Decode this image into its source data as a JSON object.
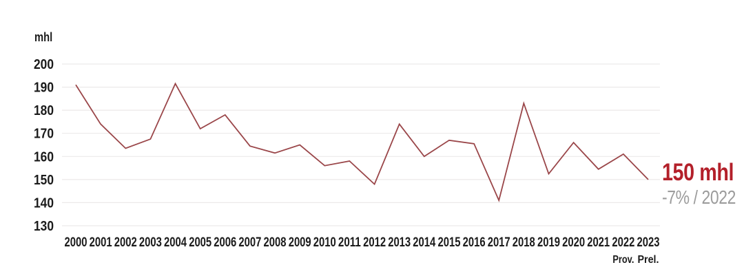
{
  "chart_data": {
    "type": "line",
    "title": "",
    "ylabel": "mhl",
    "xlabel": "",
    "x": [
      2000,
      2001,
      2002,
      2003,
      2004,
      2005,
      2006,
      2007,
      2008,
      2009,
      2010,
      2011,
      2012,
      2013,
      2014,
      2015,
      2016,
      2017,
      2018,
      2019,
      2020,
      2021,
      2022,
      2023
    ],
    "values": [
      191,
      174,
      163.5,
      167.5,
      191.5,
      172,
      178,
      164.5,
      161.5,
      165,
      156,
      158,
      148,
      174,
      160,
      167,
      165.5,
      141,
      183,
      152.5,
      166,
      154.5,
      161,
      150
    ],
    "ylim": [
      130,
      200
    ],
    "ytick_step": 10,
    "grid": true,
    "legend": "none",
    "x_sublabels": {
      "2022": "Prov.",
      "2023": "Prel."
    },
    "line_color": "#9a4649",
    "grid_color": "#ece9e9",
    "tick_color": "#1b1b1b",
    "annotation": {
      "headline": "150 mhl",
      "subline": "-7% / 2022",
      "headline_color": "#b3202a",
      "subline_color": "#9c9c9c"
    }
  }
}
